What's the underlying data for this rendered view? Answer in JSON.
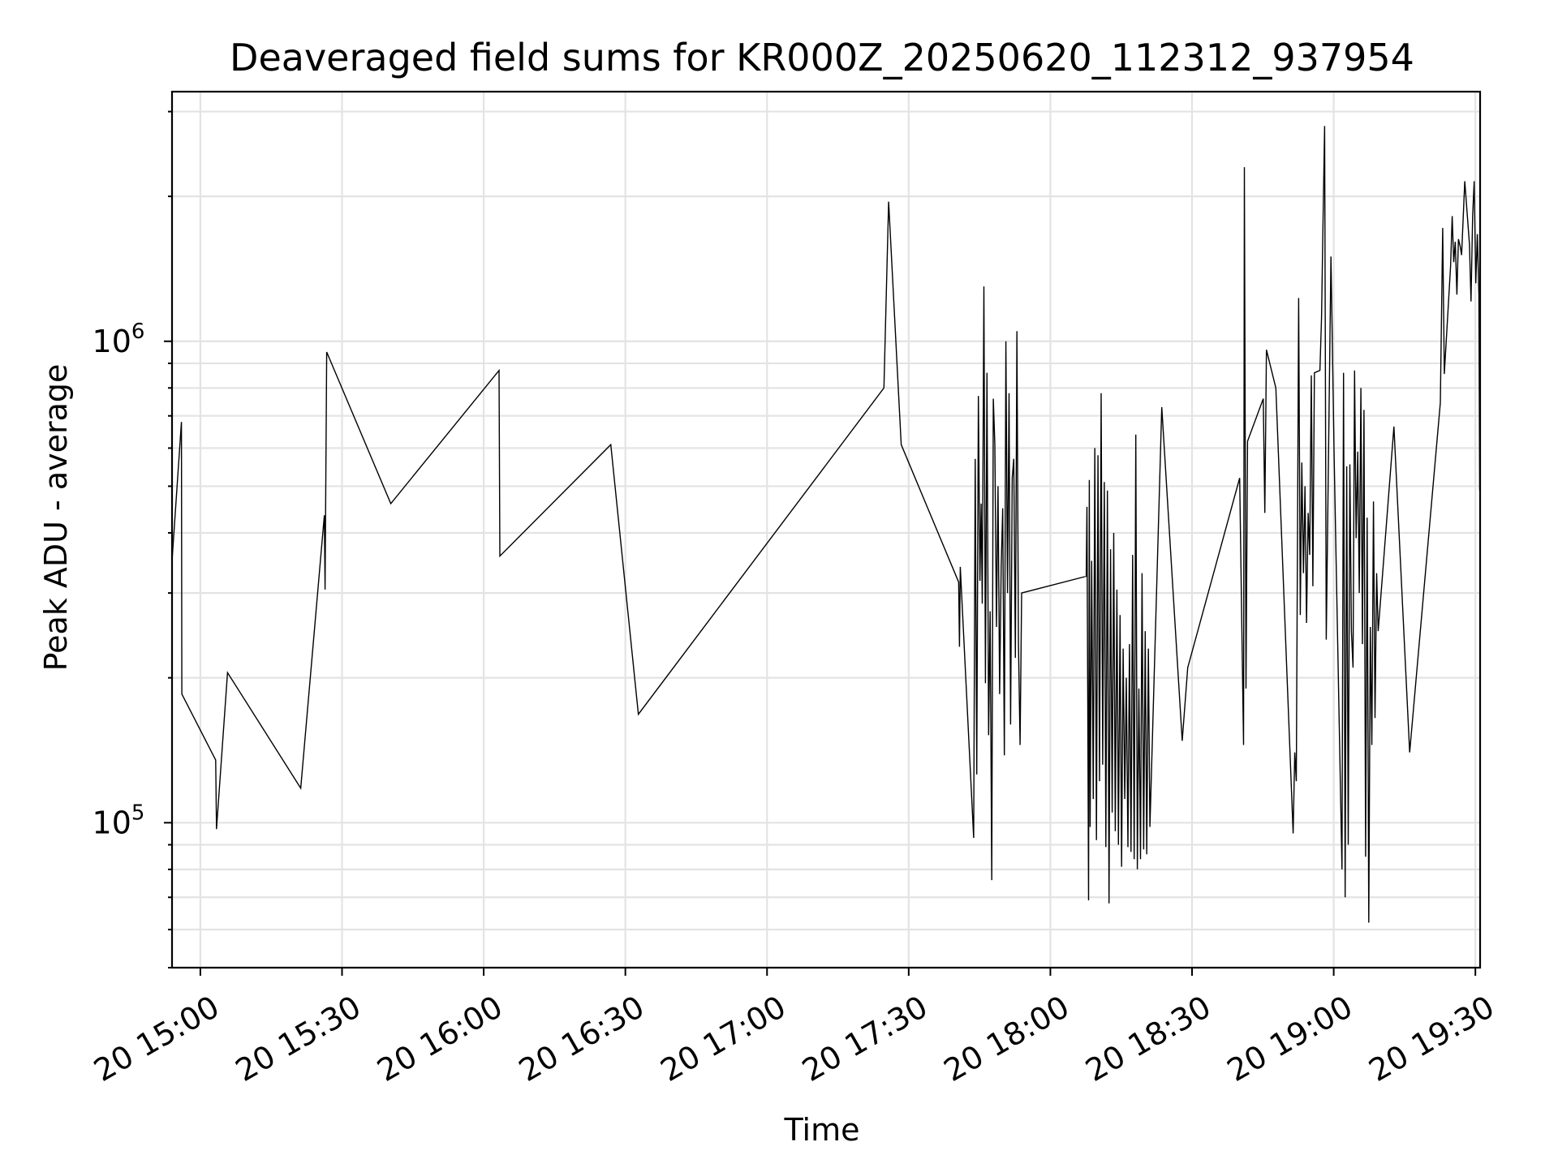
{
  "chart_data": {
    "type": "line",
    "title": "Deaveraged field sums for KR000Z_20250620_112312_937954",
    "xlabel": "Time",
    "ylabel": "Peak ADU - average",
    "yscale": "log",
    "grid": true,
    "legend": "none",
    "colors": {
      "line": "#000000",
      "grid": "#e3e3e3"
    },
    "xlim": [
      "20 14:54",
      "20 19:31"
    ],
    "ylim": [
      50000,
      3300000
    ],
    "x_ticks": [
      "20 15:00",
      "20 15:30",
      "20 16:00",
      "20 16:30",
      "20 17:00",
      "20 17:30",
      "20 18:00",
      "20 18:30",
      "20 19:00",
      "20 19:30"
    ],
    "y_ticks": [
      {
        "value": 100000,
        "base": "10",
        "exp": "5"
      },
      {
        "value": 1000000,
        "base": "10",
        "exp": "6"
      }
    ],
    "series": [
      {
        "x": [
          "14:54:00",
          "14:56:00",
          "14:56:05",
          "14:63:15",
          "14:63:25",
          "15:05:45",
          "15:21:15",
          "15:26:15",
          "15:26:25",
          "15:26:45",
          "15:40:20",
          "16:03:15",
          "16:03:25",
          "16:26:55",
          "16:32:45",
          "17:24:45",
          "17:25:45",
          "17:28:25",
          "17:40:35",
          "17:40:45",
          "17:40:55",
          "17:43:45",
          "17:44:05",
          "17:44:25",
          "17:44:45",
          "17:45:05",
          "17:45:20",
          "17:45:35",
          "17:45:55",
          "17:46:15",
          "17:46:35",
          "17:46:55",
          "17:47:15",
          "17:47:35",
          "17:47:55",
          "17:48:15",
          "17:48:35",
          "17:48:55",
          "17:49:15",
          "17:49:35",
          "17:49:55",
          "17:50:15",
          "17:50:35",
          "17:50:55",
          "17:51:15",
          "17:51:35",
          "17:51:55",
          "17:52:15",
          "17:52:35",
          "17:52:55",
          "17:53:15",
          "17:53:35",
          "17:53:55",
          "18:07:35",
          "18:07:45",
          "18:08:05",
          "18:08:15",
          "18:08:25",
          "18:08:45",
          "18:09:05",
          "18:09:25",
          "18:09:45",
          "18:10:05",
          "18:10:25",
          "18:10:45",
          "18:11:05",
          "18:11:25",
          "18:11:45",
          "18:12:05",
          "18:12:25",
          "18:12:45",
          "18:13:05",
          "18:13:25",
          "18:13:45",
          "18:14:05",
          "18:14:25",
          "18:14:45",
          "18:15:05",
          "18:15:25",
          "18:15:45",
          "18:16:05",
          "18:16:25",
          "18:16:45",
          "18:17:05",
          "18:17:25",
          "18:17:45",
          "18:18:05",
          "18:18:25",
          "18:18:45",
          "18:19:05",
          "18:19:25",
          "18:19:45",
          "18:20:05",
          "18:20:25",
          "18:20:45",
          "18:21:05",
          "18:23:35",
          "18:27:55",
          "18:29:05",
          "18:40:05",
          "18:40:55",
          "18:41:05",
          "18:41:25",
          "18:41:45",
          "18:45:05",
          "18:45:25",
          "18:45:45",
          "18:47:45",
          "18:51:25",
          "18:51:45",
          "18:52:05",
          "18:52:35",
          "18:52:55",
          "18:53:15",
          "18:53:35",
          "18:53:55",
          "18:54:15",
          "18:54:35",
          "18:54:55",
          "18:55:15",
          "18:55:35",
          "18:55:55",
          "18:57:05",
          "18:57:25",
          "18:57:45",
          "18:58:05",
          "18:58:25",
          "18:59:25",
          "19:00:05",
          "19:01:45",
          "19:02:05",
          "19:02:25",
          "19:02:45",
          "19:03:05",
          "19:03:25",
          "19:03:45",
          "19:04:05",
          "19:04:25",
          "19:04:45",
          "19:05:05",
          "19:05:25",
          "19:05:45",
          "19:06:05",
          "19:06:25",
          "19:06:45",
          "19:07:05",
          "19:07:25",
          "19:07:45",
          "19:08:05",
          "19:08:25",
          "19:08:45",
          "19:09:05",
          "19:09:25",
          "19:12:45",
          "19:16:05",
          "19:22:35",
          "19:23:05",
          "19:23:25",
          "19:24:45",
          "19:25:05",
          "19:25:25",
          "19:25:45",
          "19:26:05",
          "19:26:25",
          "19:26:45",
          "19:27:05",
          "19:27:45",
          "19:28:45",
          "19:29:05",
          "19:29:25",
          "19:29:45",
          "19:30:05",
          "19:30:25",
          "19:30:45",
          "19:30:55"
        ],
        "y": [
          350000,
          680000,
          185000,
          135000,
          97000,
          205000,
          118000,
          435000,
          305000,
          950000,
          460000,
          870000,
          358000,
          610000,
          168000,
          800000,
          1950000,
          610000,
          316000,
          232000,
          340000,
          93000,
          570000,
          126000,
          770000,
          318000,
          460000,
          285000,
          1300000,
          195000,
          860000,
          152000,
          275000,
          76000,
          760000,
          610000,
          255000,
          500000,
          185000,
          340000,
          450000,
          138000,
          1000000,
          300000,
          780000,
          160000,
          520000,
          570000,
          220000,
          1050000,
          235000,
          145000,
          300000,
          325000,
          453000,
          69000,
          515000,
          98000,
          350000,
          112000,
          600000,
          92000,
          580000,
          122000,
          780000,
          132000,
          510000,
          89000,
          490000,
          68000,
          370000,
          105000,
          400000,
          96000,
          305000,
          90000,
          270000,
          81000,
          230000,
          112000,
          200000,
          89000,
          235000,
          87000,
          360000,
          84000,
          640000,
          80000,
          190000,
          84000,
          330000,
          88000,
          250000,
          86000,
          230000,
          98000,
          730000,
          148000,
          210000,
          520000,
          145000,
          2300000,
          190000,
          620000,
          760000,
          440000,
          960000,
          800000,
          95000,
          140000,
          122000,
          1230000,
          270000,
          560000,
          330000,
          500000,
          260000,
          440000,
          360000,
          850000,
          310000,
          860000,
          870000,
          1120000,
          1800000,
          2800000,
          240000,
          1500000,
          580000,
          80000,
          860000,
          70000,
          550000,
          90000,
          555000,
          250000,
          210000,
          870000,
          390000,
          590000,
          300000,
          800000,
          235000,
          720000,
          85000,
          430000,
          62000,
          255000,
          145000,
          465000,
          165000,
          330000,
          250000,
          665000,
          140000,
          745000,
          1720000,
          855000,
          1430000,
          1820000,
          1460000,
          1610000,
          1250000,
          1630000,
          1580000,
          1510000,
          2150000,
          1590000,
          1210000,
          1820000,
          2150000,
          1320000,
          1670000,
          1250000,
          490000
        ]
      }
    ]
  }
}
